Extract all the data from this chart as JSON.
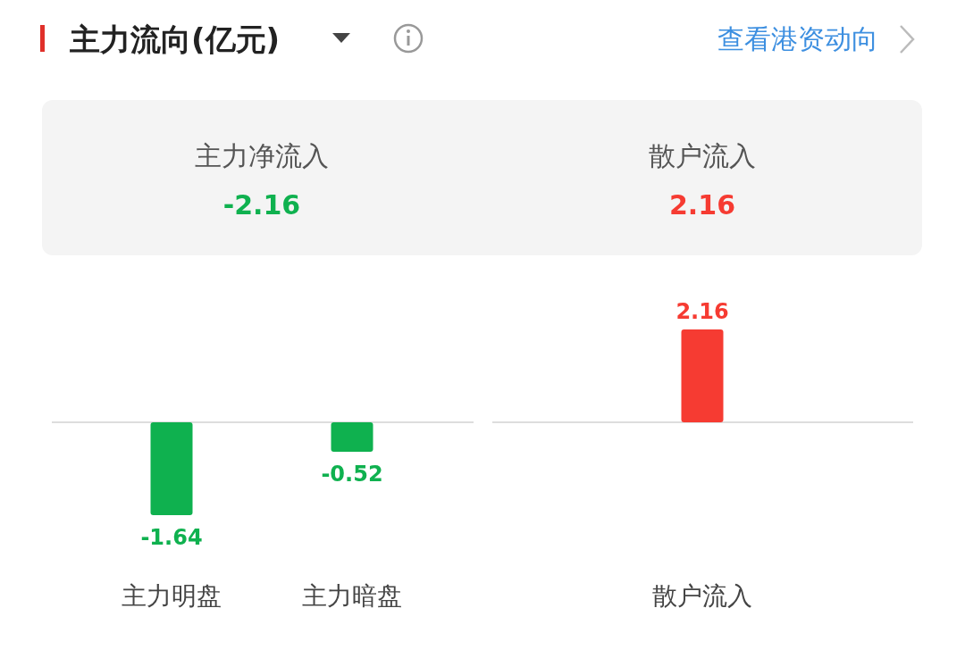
{
  "chart_data": [
    {
      "type": "other",
      "title": "主力流向(亿元)",
      "annotations": [
        "查看港资动向",
        "主力净流入",
        "-2.16",
        "散户流入",
        "2.16"
      ]
    },
    {
      "type": "bar",
      "categories": [
        "主力明盘",
        "主力暗盘"
      ],
      "values": [
        -1.64,
        -0.52
      ],
      "color": "#0fb14f",
      "data_labels": true
    },
    {
      "type": "bar",
      "categories": [
        "散户流入"
      ],
      "values": [
        2.16
      ],
      "color": "#f63b32",
      "data_labels": true
    }
  ]
}
